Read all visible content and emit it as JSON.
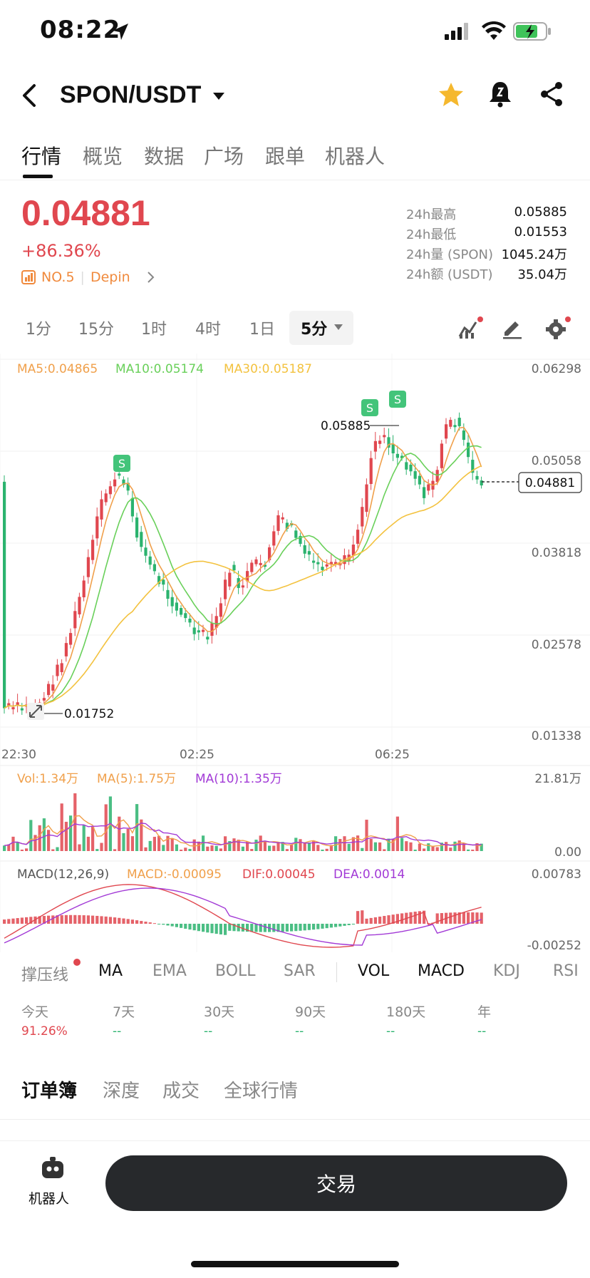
{
  "status": {
    "time": "08:22"
  },
  "header": {
    "pair": "SPON/USDT"
  },
  "tabs": [
    "行情",
    "概览",
    "数据",
    "广场",
    "跟单",
    "机器人"
  ],
  "ticker": {
    "price": "0.04881",
    "change": "+86.36%",
    "rank": "NO.5",
    "tag": "Depin",
    "stats": [
      {
        "label": "24h最高",
        "value": "0.05885"
      },
      {
        "label": "24h最低",
        "value": "0.01553"
      },
      {
        "label": "24h量 (SPON)",
        "value": "1045.24万"
      },
      {
        "label": "24h额 (USDT)",
        "value": "35.04万"
      }
    ]
  },
  "intervals": [
    "1分",
    "15分",
    "1时",
    "4时",
    "1日"
  ],
  "interval_selected": "5分",
  "chart": {
    "ma_legend": {
      "ma5": "MA5:0.04865",
      "ma10": "MA10:0.05174",
      "ma30": "MA30:0.05187"
    },
    "y_ticks": [
      "0.06298",
      "0.05058",
      "0.03818",
      "0.02578",
      "0.01338"
    ],
    "x_ticks": [
      "22:30",
      "02:25",
      "06:25"
    ],
    "last_price": "0.04881",
    "high_marker": "0.05885",
    "low_marker": "0.01752",
    "signal_marker": "S",
    "vol_legend": {
      "vol": "Vol:1.34万",
      "ma5": "MA(5):1.75万",
      "ma10": "MA(10):1.35万"
    },
    "vol_ticks": [
      "21.81万",
      "0.00"
    ],
    "macd_legend": {
      "name": "MACD(12,26,9)",
      "macd": "MACD:-0.00095",
      "dif": "DIF:0.00045",
      "dea": "DEA:0.0014"
    },
    "macd_ticks": [
      "0.00783",
      "-0.00252"
    ],
    "colors": {
      "up": "#e0474f",
      "down": "#2bb36e",
      "ma5": "#f0a04b",
      "ma10": "#69d05a",
      "ma30": "#f3c23f"
    }
  },
  "indicators": [
    "撑压线",
    "MA",
    "EMA",
    "BOLL",
    "SAR",
    "VOL",
    "MACD",
    "KDJ",
    "RSI"
  ],
  "performance": [
    {
      "label": "今天",
      "value": "91.26%"
    },
    {
      "label": "7天",
      "value": "--"
    },
    {
      "label": "30天",
      "value": "--"
    },
    {
      "label": "90天",
      "value": "--"
    },
    {
      "label": "180天",
      "value": "--"
    },
    {
      "label": "年",
      "value": "--"
    }
  ],
  "book_tabs": [
    "订单簿",
    "深度",
    "成交",
    "全球行情"
  ],
  "bottom": {
    "robot_label": "机器人",
    "trade_label": "交易"
  }
}
